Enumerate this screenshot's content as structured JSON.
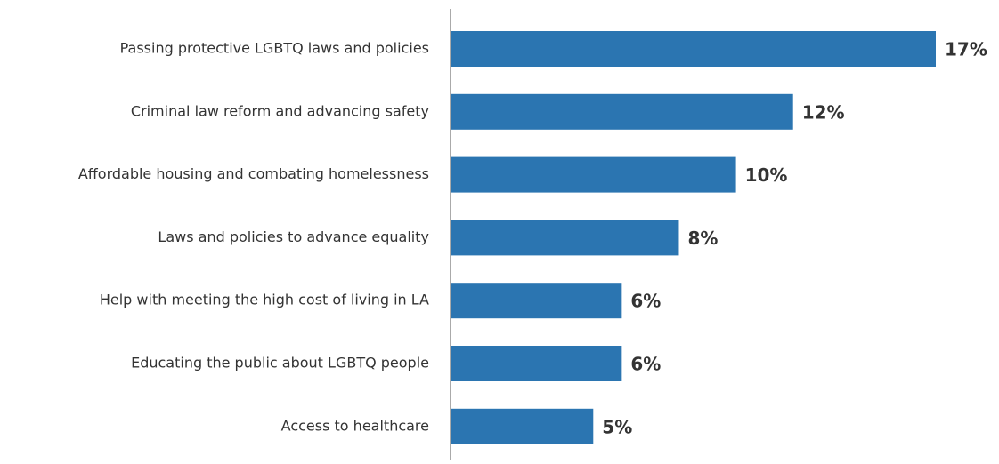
{
  "chart_data": {
    "type": "bar",
    "orientation": "horizontal",
    "categories": [
      "Passing protective LGBTQ laws and policies",
      "Criminal law reform and advancing safety",
      "Affordable housing and combating homelessness",
      "Laws and policies to advance equality",
      "Help with meeting the high cost of living in LA",
      "Educating the public about LGBTQ people",
      "Access to healthcare"
    ],
    "values": [
      17,
      12,
      10,
      8,
      6,
      6,
      5
    ],
    "value_labels": [
      "17%",
      "12%",
      "10%",
      "8%",
      "6%",
      "6%",
      "5%"
    ],
    "color": "#2b75b1",
    "xlim": [
      0,
      17
    ]
  }
}
